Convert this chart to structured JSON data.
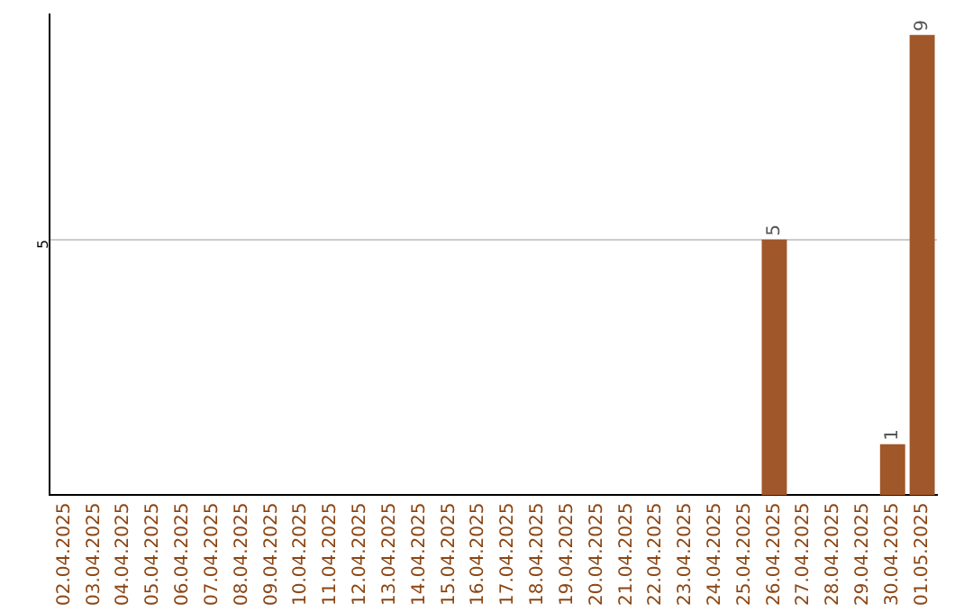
{
  "chart_data": {
    "type": "bar",
    "categories": [
      "02.04.2025",
      "03.04.2025",
      "04.04.2025",
      "05.04.2025",
      "06.04.2025",
      "07.04.2025",
      "08.04.2025",
      "09.04.2025",
      "10.04.2025",
      "11.04.2025",
      "12.04.2025",
      "13.04.2025",
      "14.04.2025",
      "15.04.2025",
      "16.04.2025",
      "17.04.2025",
      "18.04.2025",
      "19.04.2025",
      "20.04.2025",
      "21.04.2025",
      "22.04.2025",
      "23.04.2025",
      "24.04.2025",
      "25.04.2025",
      "26.04.2025",
      "27.04.2025",
      "28.04.2025",
      "29.04.2025",
      "30.04.2025",
      "01.05.2025"
    ],
    "values": [
      null,
      null,
      null,
      null,
      null,
      null,
      null,
      null,
      null,
      null,
      null,
      null,
      null,
      null,
      null,
      null,
      null,
      null,
      null,
      null,
      null,
      null,
      null,
      null,
      5,
      null,
      null,
      null,
      1,
      9
    ],
    "data_labels": true,
    "color": "#a0572a",
    "ylim": [
      0,
      9.4
    ],
    "yticks": [
      5
    ],
    "grid": "y",
    "legend": false
  }
}
